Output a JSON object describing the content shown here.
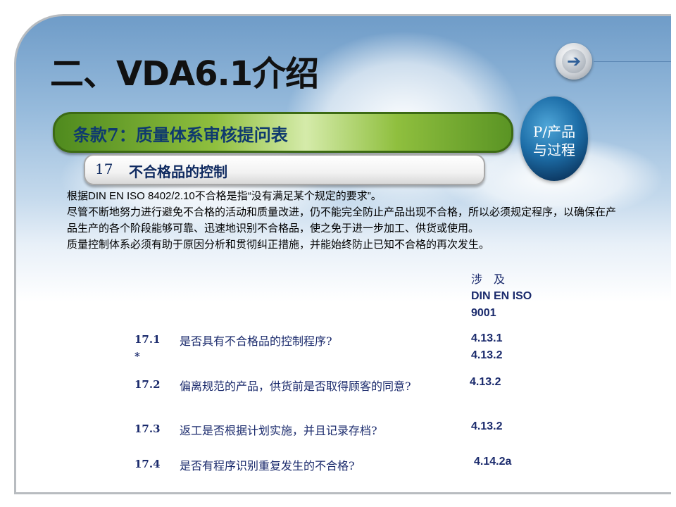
{
  "slide": {
    "title": "二、VDA6.1介绍",
    "nav_icon": "arrow-right-icon",
    "section_bar": "条款7：质量体系审核提问表",
    "subsection_number": "17",
    "subsection_title": "不合格品的控制",
    "globe_line1": "P/产品",
    "globe_line2": "与过程",
    "paragraphs": [
      "根据DIN EN ISO 8402/2.10不合格是指“没有满足某个规定的要求”。",
      "尽管不断地努力进行避免不合格的活动和质量改进，仍不能完全防止产品出现不合格，所以必须规定程序，以确保在产品生产的各个阶段能够可靠、迅速地识别不合格品，使之免于进一步加工、供货或使用。",
      "质量控制体系必须有助于原因分析和贯彻纠正措施，并能始终防止已知不合格的再次发生。"
    ],
    "ref_header": [
      "涉　及",
      "DIN EN ISO",
      "9001"
    ],
    "questions": [
      {
        "number": "17.1",
        "mark": "*",
        "text": "是否具有不合格品的控制程序?",
        "refs": [
          "4.13.1",
          "4.13.2"
        ]
      },
      {
        "number": "17.2",
        "text": "偏离规范的产品，供货前是否取得顾客的同意?",
        "refs": [
          "4.13.2"
        ]
      },
      {
        "number": "17.3",
        "text": "返工是否根据计划实施，并且记录存档?",
        "refs": [
          "4.13.2"
        ]
      },
      {
        "number": "17.4",
        "text": "是否有程序识别重复发生的不合格?",
        "refs": [
          "4.14.2a"
        ]
      }
    ]
  }
}
